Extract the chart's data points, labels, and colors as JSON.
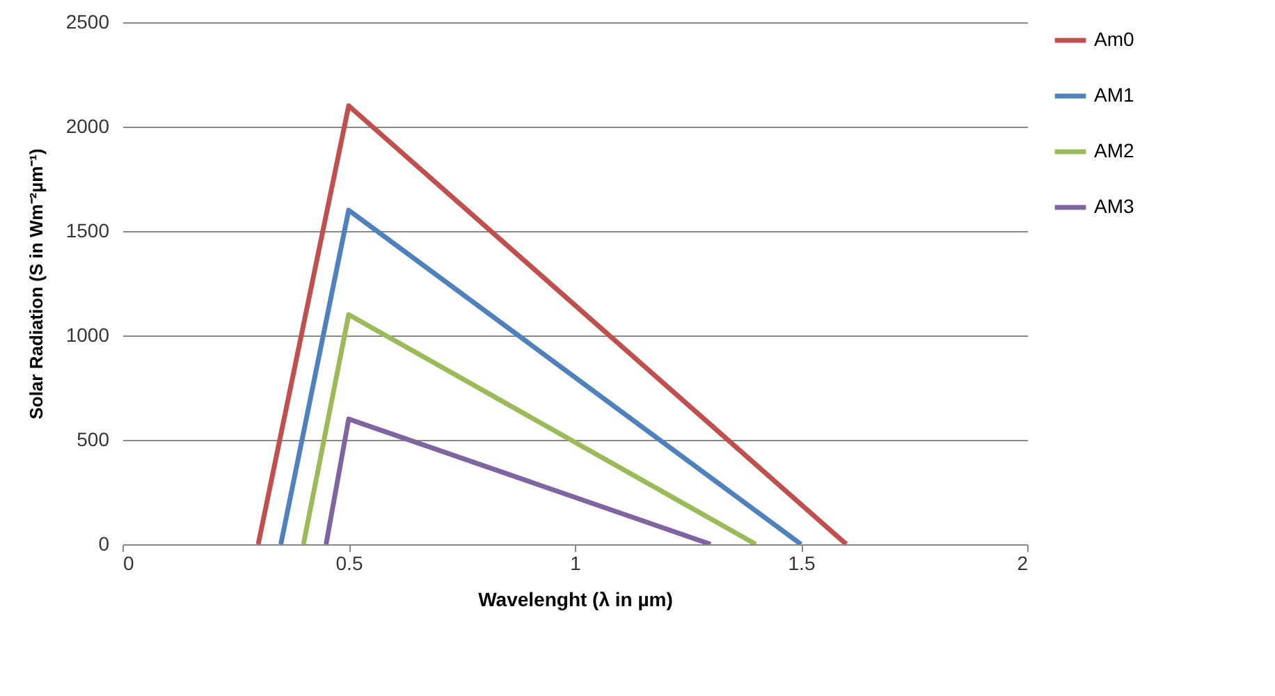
{
  "chart_data": {
    "type": "line",
    "xlabel": "Wavelenght (λ in µm)",
    "ylabel": "Solar Radiation (S in Wm⁻²µm⁻¹)",
    "xlim": [
      0,
      2
    ],
    "xticks": [
      0,
      0.5,
      1,
      1.5,
      2
    ],
    "ylim": [
      0,
      2500
    ],
    "yticks": [
      0,
      500,
      1000,
      1500,
      2000,
      2500
    ],
    "grid": "y",
    "legend": "right",
    "marker": "none",
    "line_style": "solid",
    "series": [
      {
        "name": "Am0",
        "color": "#c0504d",
        "x": [
          0.3,
          0.5,
          1.6
        ],
        "values": [
          0,
          2100,
          0
        ]
      },
      {
        "name": "AM1",
        "color": "#4f81bd",
        "x": [
          0.35,
          0.5,
          1.5
        ],
        "values": [
          0,
          1600,
          0
        ]
      },
      {
        "name": "AM2",
        "color": "#9bbb59",
        "x": [
          0.4,
          0.5,
          1.4
        ],
        "values": [
          0,
          1100,
          0
        ]
      },
      {
        "name": "AM3",
        "color": "#8064a2",
        "x": [
          0.45,
          0.5,
          1.3
        ],
        "values": [
          0,
          600,
          0
        ]
      }
    ]
  }
}
